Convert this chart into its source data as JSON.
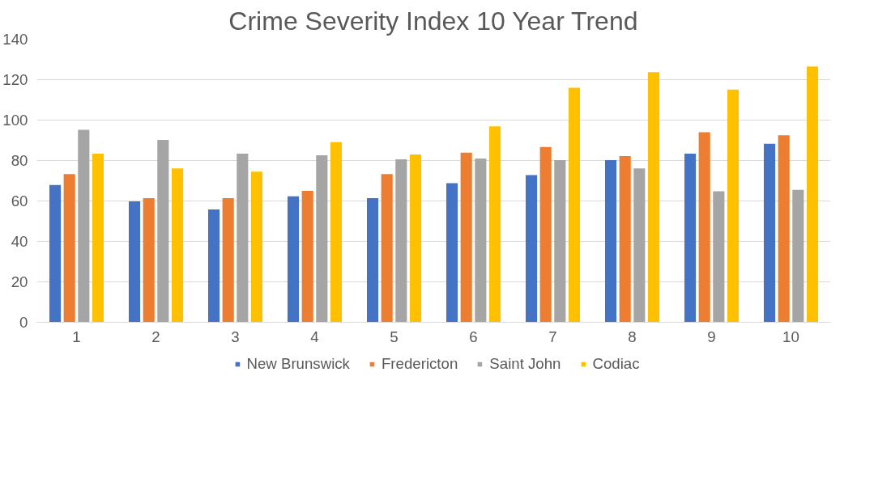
{
  "chart_data": {
    "type": "bar",
    "title": "Crime Severity Index 10 Year Trend",
    "categories": [
      "1",
      "2",
      "3",
      "4",
      "5",
      "6",
      "7",
      "8",
      "9",
      "10"
    ],
    "series": [
      {
        "name": "New Brunswick",
        "color": "#4472c4",
        "values": [
          67.9,
          59.8,
          55.8,
          62.3,
          61.4,
          68.8,
          72.8,
          80.2,
          83.4,
          88.3
        ]
      },
      {
        "name": "Fredericton",
        "color": "#ed7d31",
        "values": [
          73.3,
          61.4,
          61.4,
          65.0,
          73.3,
          83.9,
          86.7,
          82.2,
          94.0,
          92.5
        ]
      },
      {
        "name": "Saint John",
        "color": "#a5a5a5",
        "values": [
          95.2,
          90.2,
          83.4,
          82.6,
          80.6,
          81.0,
          80.2,
          76.1,
          64.8,
          65.5
        ]
      },
      {
        "name": "Codiac",
        "color": "#ffc000",
        "values": [
          83.4,
          76.1,
          74.5,
          89.1,
          83.0,
          96.9,
          116.0,
          123.7,
          115.1,
          126.5
        ]
      }
    ],
    "ylim": [
      0,
      140
    ],
    "yticks": [
      0,
      20,
      40,
      60,
      80,
      100,
      120,
      140
    ],
    "grid": "y",
    "legend": "bottom"
  }
}
